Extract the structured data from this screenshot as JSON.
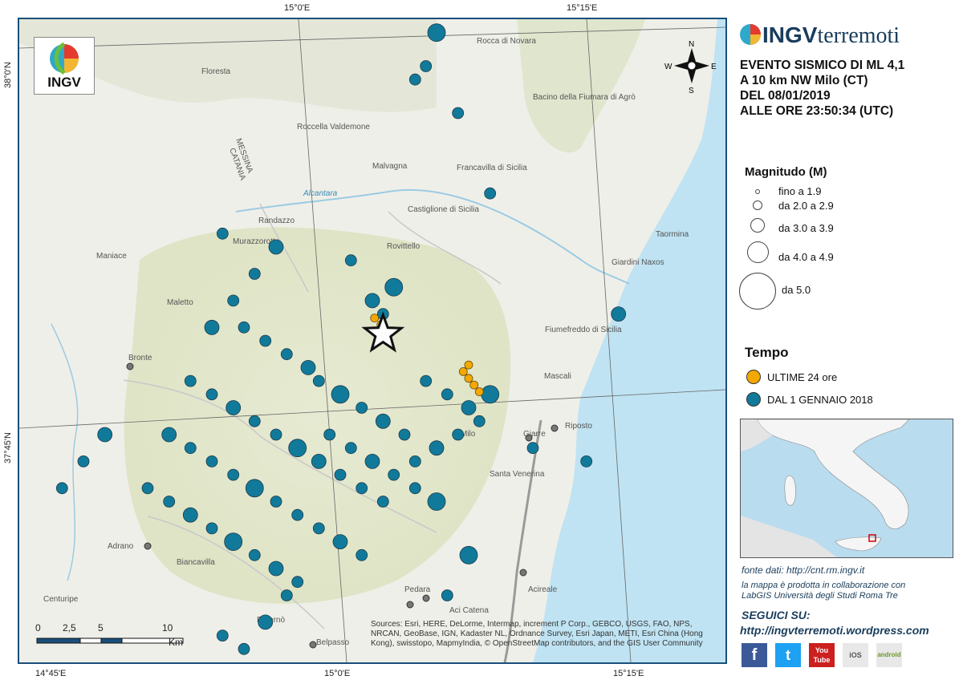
{
  "coords": {
    "top_15_00": "15°0'E",
    "top_15_15": "15°15'E",
    "bottom_14_45": "14°45'E",
    "bottom_15_00": "15°0'E",
    "bottom_15_15": "15°15'E",
    "left_38_00": "38°0'N",
    "left_37_45": "37°45'N"
  },
  "logo": {
    "text": "INGV"
  },
  "brand": {
    "part1": "INGV",
    "part2": "terremoti"
  },
  "event": {
    "line1": "EVENTO SISMICO DI ML 4,1",
    "line2": "A 10 km NW Milo (CT)",
    "line3": "DEL 08/01/2019",
    "line4": "ALLE ORE 23:50:34 (UTC)"
  },
  "legend": {
    "magnitude_title": "Magnitudo (M)",
    "classes": [
      "fino a 1.9",
      "da 2.0 a 2.9",
      "da 3.0 a 3.9",
      "da 4.0 a 4.9",
      "da 5.0"
    ],
    "time_title": "Tempo",
    "time_items": [
      {
        "label": "ULTIME 24 ore",
        "color": "#f5a800"
      },
      {
        "label": "DAL 1 GENNAIO 2018",
        "color": "#117a9a"
      }
    ]
  },
  "compass": {
    "n": "N",
    "s": "S",
    "e": "E",
    "w": "W"
  },
  "scale": {
    "ticks": [
      "0",
      "2,5",
      "5",
      "10"
    ],
    "unit": "Km"
  },
  "place_labels": [
    "Floresta",
    "Roccella Valdemone",
    "Malvagna",
    "Francavilla di Sicilia",
    "Castiglione di Sicilia",
    "Randazzo",
    "Murazzorotto",
    "Rovittello",
    "Maniace",
    "Maletto",
    "Bronte",
    "Fiumefreddo di Sicilia",
    "Giardini Naxos",
    "Taormina",
    "Mascali",
    "Riposto",
    "Giarre",
    "Milo",
    "Santa Venerina",
    "Acireale",
    "Aci Catena",
    "Pedara",
    "Adrano",
    "Biancavilla",
    "Centuripe",
    "Paternò",
    "Belpasso",
    "Rocca di Novara",
    "Bacino della Fiumara di Agrò",
    "MESSINA",
    "CATANIA",
    "Alcantara",
    "Acireale"
  ],
  "sources": "Sources: Esri, HERE, DeLorme, Intermap, increment P Corp., GEBCO, USGS, FAO, NPS, NRCAN, GeoBase, IGN, Kadaster NL, Ordnance Survey, Esri Japan, METI, Esri China (Hong Kong), swisstopo, MapmyIndia, © OpenStreetMap contributors, and the GIS User Community",
  "panel": {
    "source": "fonte dati: http://cnt.rm.ingv.it",
    "collab": "la mappa è prodotta in collaborazione con LabGIS Università degli Studi Roma Tre",
    "follow": "SEGUICI SU:",
    "blog": "http://ingvterremoti.wordpress.com",
    "social": [
      "f",
      "t",
      "You Tube",
      "iOS",
      "android"
    ]
  },
  "chart_data": {
    "type": "scatter",
    "title": "",
    "mainshock": {
      "lon": 15.06,
      "lat": 37.795,
      "ml": 4.1
    },
    "recent_24h": [
      [
        15.14,
        37.762
      ],
      [
        15.145,
        37.757
      ],
      [
        15.15,
        37.752
      ],
      [
        15.135,
        37.767
      ],
      [
        15.14,
        37.772
      ],
      [
        15.052,
        37.807
      ],
      [
        15.058,
        37.802
      ]
    ],
    "since_2018": [
      [
        15.11,
        38.02
      ],
      [
        15.13,
        37.96
      ],
      [
        15.09,
        37.985
      ],
      [
        15.1,
        37.995
      ],
      [
        14.96,
        37.86
      ],
      [
        14.94,
        37.84
      ],
      [
        14.91,
        37.87
      ],
      [
        14.92,
        37.82
      ],
      [
        15.05,
        37.82
      ],
      [
        15.07,
        37.83
      ],
      [
        15.06,
        37.81
      ],
      [
        15.03,
        37.85
      ],
      [
        14.9,
        37.8
      ],
      [
        14.93,
        37.8
      ],
      [
        14.95,
        37.79
      ],
      [
        14.97,
        37.78
      ],
      [
        14.99,
        37.77
      ],
      [
        15.0,
        37.76
      ],
      [
        15.02,
        37.75
      ],
      [
        15.04,
        37.74
      ],
      [
        15.06,
        37.73
      ],
      [
        15.08,
        37.72
      ],
      [
        14.88,
        37.76
      ],
      [
        14.9,
        37.75
      ],
      [
        14.92,
        37.74
      ],
      [
        14.94,
        37.73
      ],
      [
        14.96,
        37.72
      ],
      [
        14.98,
        37.71
      ],
      [
        15.0,
        37.7
      ],
      [
        15.02,
        37.69
      ],
      [
        15.04,
        37.68
      ],
      [
        15.06,
        37.67
      ],
      [
        14.86,
        37.72
      ],
      [
        14.88,
        37.71
      ],
      [
        14.9,
        37.7
      ],
      [
        14.92,
        37.69
      ],
      [
        14.94,
        37.68
      ],
      [
        14.96,
        37.67
      ],
      [
        14.98,
        37.66
      ],
      [
        15.0,
        37.65
      ],
      [
        15.02,
        37.64
      ],
      [
        15.04,
        37.63
      ],
      [
        15.1,
        37.76
      ],
      [
        15.12,
        37.75
      ],
      [
        15.14,
        37.74
      ],
      [
        15.16,
        37.75
      ],
      [
        15.15,
        37.73
      ],
      [
        15.13,
        37.72
      ],
      [
        15.11,
        37.71
      ],
      [
        15.09,
        37.7
      ],
      [
        14.84,
        37.68
      ],
      [
        14.86,
        37.67
      ],
      [
        14.88,
        37.66
      ],
      [
        14.9,
        37.65
      ],
      [
        14.92,
        37.64
      ],
      [
        14.94,
        37.63
      ],
      [
        14.96,
        37.62
      ],
      [
        14.98,
        37.61
      ],
      [
        15.01,
        37.72
      ],
      [
        15.03,
        37.71
      ],
      [
        15.05,
        37.7
      ],
      [
        15.07,
        37.69
      ],
      [
        15.09,
        37.68
      ],
      [
        15.11,
        37.67
      ],
      [
        14.8,
        37.72
      ],
      [
        14.78,
        37.7
      ],
      [
        14.76,
        37.68
      ],
      [
        14.97,
        37.6
      ],
      [
        14.95,
        37.58
      ],
      [
        14.93,
        37.56
      ],
      [
        14.91,
        37.57
      ],
      [
        15.12,
        37.6
      ],
      [
        15.14,
        37.63
      ],
      [
        15.2,
        37.71
      ],
      [
        15.25,
        37.7
      ],
      [
        15.16,
        37.9
      ],
      [
        15.28,
        37.81
      ]
    ]
  }
}
